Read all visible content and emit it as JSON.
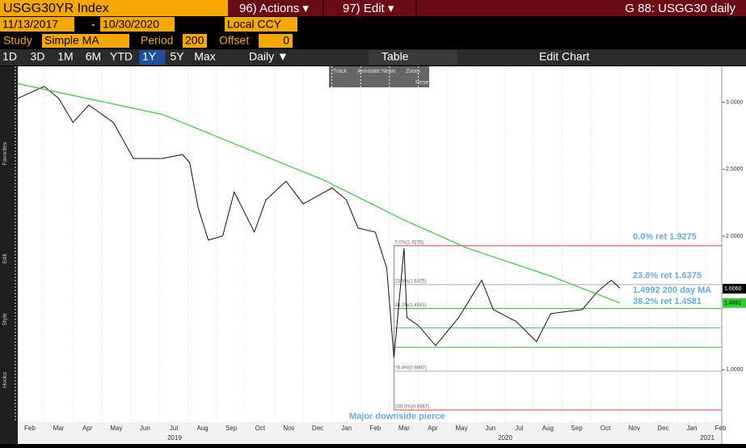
{
  "ui": {
    "ticker": "USGG30YR Index",
    "actions": "96) Actions ▾",
    "edit": "97) Edit ▾",
    "page_title": "G 88: USGG30 daily",
    "start_date": "11/13/2017",
    "date_sep": "-",
    "end_date": "10/30/2020",
    "currency": "Local CCY",
    "study_label": "Study",
    "study": "Simple MA",
    "period_label": "Period",
    "period": "200",
    "offset_label": "Offset",
    "offset": "0",
    "ranges": [
      "1D",
      "3D",
      "1M",
      "6M",
      "YTD",
      "1Y",
      "5Y",
      "Max"
    ],
    "active_range": 5,
    "frequency": "Daily ▼",
    "table": "Table",
    "edit_chart": "Edit Chart",
    "overlay": [
      "Track",
      "Annotate",
      "News",
      "Zoom",
      "Reset"
    ],
    "sidebar": [
      "Favorites",
      "Edit",
      "Style",
      "Hooks"
    ]
  },
  "chart_data": {
    "type": "line",
    "series": [
      {
        "color": "#111111",
        "x": [
          0.58,
          1.5,
          2,
          2.5,
          3.05,
          3.9,
          4.6,
          5.6,
          6.3,
          6.55,
          6.85,
          7.2,
          7.7,
          8.1,
          8.8,
          9.2,
          9.9,
          10.5,
          11.5,
          12,
          12.4,
          13,
          13.4,
          13.65,
          14,
          14.1,
          14.5,
          15.1,
          15.9,
          16.7,
          17.1,
          17.9,
          18.6,
          19.1,
          20.2,
          20.7,
          21.2,
          21.5
        ],
        "values": [
          3.03,
          3.12,
          3.03,
          2.85,
          2.98,
          2.85,
          2.58,
          2.58,
          2.61,
          2.55,
          2.21,
          1.97,
          2.0,
          2.33,
          2.03,
          2.27,
          2.41,
          2.24,
          2.36,
          2.27,
          2.06,
          2.03,
          1.76,
          1.09,
          1.91,
          1.39,
          1.33,
          1.18,
          1.39,
          1.67,
          1.45,
          1.36,
          1.21,
          1.42,
          1.45,
          1.58,
          1.67,
          1.61
        ]
      },
      {
        "color": "#33cc33",
        "x": [
          0.58,
          5.6,
          11.2,
          14,
          16.2,
          19.1,
          21.5
        ],
        "values": [
          3.14,
          2.91,
          2.42,
          2.12,
          1.91,
          1.7,
          1.5
        ]
      }
    ],
    "fib_start": 13.65,
    "fib": [
      {
        "value": 1.9275,
        "label": "0.0%(1.9275)",
        "color": "#e04040"
      },
      {
        "value": 1.6375,
        "label": "23.6%(1.6375)",
        "color": "#aaaaaa"
      },
      {
        "value": 1.4581,
        "label": "38.2%(1.4581)",
        "color": "#33cc33"
      },
      {
        "value": 1.3131,
        "color": "#33cccc"
      },
      {
        "value": 1.1681,
        "color": "#33cc33"
      },
      {
        "value": 0.9887,
        "label": "76.4%(0.9887)",
        "color": "#aaaaaa"
      },
      {
        "value": 0.6987,
        "label": "100.0%(0.6987)",
        "color": "#e04040"
      }
    ],
    "annotations": [
      "0.0% ret 1.9275",
      "23.6% ret 1.6375",
      "1.4992 200 day MA",
      "38.2% ret 1.4581",
      "Major downside pierce"
    ],
    "last_value": {
      "value": 1.606,
      "label": "1.6060"
    },
    "ma_value": {
      "value": 1.4992,
      "label": "1.4992"
    },
    "xlim": [
      0.58,
      25.04
    ],
    "ylim": [
      0.62,
      3.27
    ],
    "yticks": [
      {
        "value": 3,
        "label": "3.0000"
      },
      {
        "value": 2.5,
        "label": "2.5000"
      },
      {
        "value": 2,
        "label": "2.0000"
      },
      {
        "value": 1,
        "label": "1.0000"
      }
    ],
    "xticks": [
      {
        "value": 1,
        "label": "Feb"
      },
      {
        "value": 2,
        "label": "Mar"
      },
      {
        "value": 3,
        "label": "Apr"
      },
      {
        "value": 4,
        "label": "May"
      },
      {
        "value": 5,
        "label": "Jun"
      },
      {
        "value": 6,
        "label": "Jul"
      },
      {
        "value": 7,
        "label": "Aug"
      },
      {
        "value": 8,
        "label": "Sep"
      },
      {
        "value": 9,
        "label": "Oct"
      },
      {
        "value": 10,
        "label": "Nov"
      },
      {
        "value": 11,
        "label": "Dec"
      },
      {
        "value": 12,
        "label": "Jan"
      },
      {
        "value": 13,
        "label": "Feb"
      },
      {
        "value": 14,
        "label": "Mar"
      },
      {
        "value": 15,
        "label": "Apr"
      },
      {
        "value": 16,
        "label": "May"
      },
      {
        "value": 17,
        "label": "Jun"
      },
      {
        "value": 18,
        "label": "Jul"
      },
      {
        "value": 19,
        "label": "Aug"
      },
      {
        "value": 20,
        "label": "Sep"
      },
      {
        "value": 21,
        "label": "Oct"
      },
      {
        "value": 22,
        "label": "Nov"
      },
      {
        "value": 23,
        "label": "Dec"
      },
      {
        "value": 24,
        "label": "Jan"
      },
      {
        "value": 25,
        "label": "Feb"
      }
    ],
    "year_labels": [
      "2019",
      "2020",
      "2021"
    ],
    "grid": true
  }
}
